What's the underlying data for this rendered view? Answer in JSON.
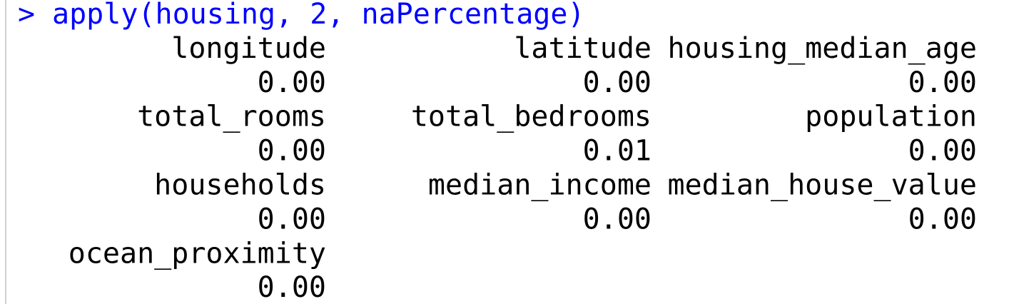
{
  "console": {
    "prompt": ">",
    "command": "apply(housing, 2, naPercentage)",
    "output": [
      {
        "name": "longitude",
        "value": "0.00"
      },
      {
        "name": "latitude",
        "value": "0.00"
      },
      {
        "name": "housing_median_age",
        "value": "0.00"
      },
      {
        "name": "total_rooms",
        "value": "0.00"
      },
      {
        "name": "total_bedrooms",
        "value": "0.01"
      },
      {
        "name": "population",
        "value": "0.00"
      },
      {
        "name": "households",
        "value": "0.00"
      },
      {
        "name": "median_income",
        "value": "0.00"
      },
      {
        "name": "median_house_value",
        "value": "0.00"
      },
      {
        "name": "ocean_proximity",
        "value": "0.00"
      }
    ]
  }
}
